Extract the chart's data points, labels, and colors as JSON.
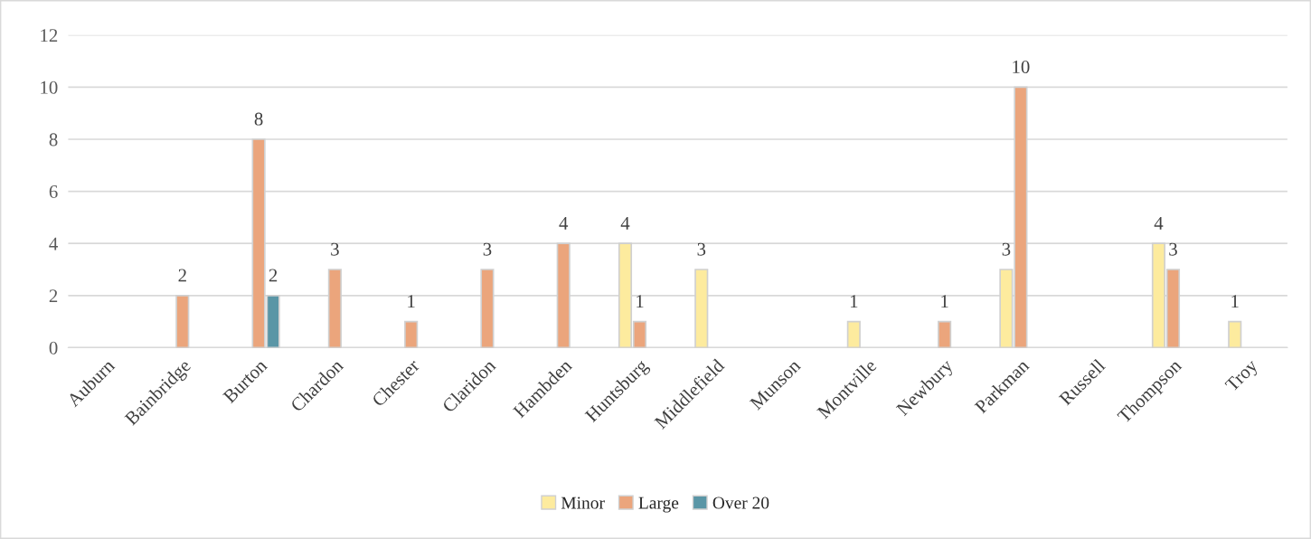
{
  "chart_data": {
    "type": "bar",
    "categories": [
      "Auburn",
      "Bainbridge",
      "Burton",
      "Chardon",
      "Chester",
      "Claridon",
      "Hambden",
      "Huntsburg",
      "Middlefield",
      "Munson",
      "Montville",
      "Newbury",
      "Parkman",
      "Russell",
      "Thompson",
      "Troy"
    ],
    "series": [
      {
        "name": "Minor",
        "color": "#fdeb9e",
        "values": [
          null,
          null,
          null,
          null,
          null,
          null,
          null,
          4,
          3,
          null,
          1,
          null,
          3,
          null,
          4,
          1
        ]
      },
      {
        "name": "Large",
        "color": "#eba57c",
        "values": [
          null,
          2,
          8,
          3,
          1,
          3,
          4,
          1,
          null,
          null,
          null,
          1,
          10,
          null,
          3,
          null
        ]
      },
      {
        "name": "Over 20",
        "color": "#5a96a6",
        "values": [
          null,
          null,
          2,
          null,
          null,
          null,
          null,
          null,
          null,
          null,
          null,
          null,
          null,
          null,
          null,
          null
        ]
      }
    ],
    "ylim": [
      0,
      12
    ],
    "yticks": [
      0,
      2,
      4,
      6,
      8,
      10,
      12
    ],
    "grid": "y",
    "legend": "bottom",
    "data_labels": true
  }
}
